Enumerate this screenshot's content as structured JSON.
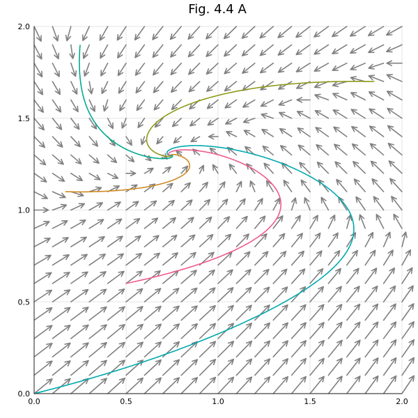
{
  "chart_data": {
    "type": "quiver",
    "title": "Fig. 4.4 A",
    "xlabel": "",
    "ylabel": "",
    "xlim": [
      0,
      2
    ],
    "ylim": [
      0,
      2
    ],
    "xticks": [
      "0.0",
      "0.5",
      "1.0",
      "1.5",
      "2.0"
    ],
    "yticks": [
      "0.0",
      "0.5",
      "1.0",
      "1.5",
      "2.0"
    ],
    "grid": true,
    "legend": "none",
    "vector_field": {
      "grid_step": 0.1,
      "arrow_color": "#808080",
      "model": {
        "k1": 20,
        "k2": 5,
        "k3": 5,
        "k4": 5,
        "k5": 2,
        "n": 4
      }
    },
    "trajectories": [
      {
        "start": [
          0.0,
          0.0
        ],
        "color": "#00A9AD"
      },
      {
        "start": [
          0.5,
          0.6
        ],
        "color": "#EE5A8E"
      },
      {
        "start": [
          1.85,
          1.7
        ],
        "color": "#8E9A1A"
      },
      {
        "start": [
          0.17,
          1.1
        ],
        "color": "#D08A22"
      },
      {
        "start": [
          0.25,
          1.9
        ],
        "color": "#00A98E"
      }
    ],
    "fixed_point": [
      0.745,
      1.298
    ]
  }
}
